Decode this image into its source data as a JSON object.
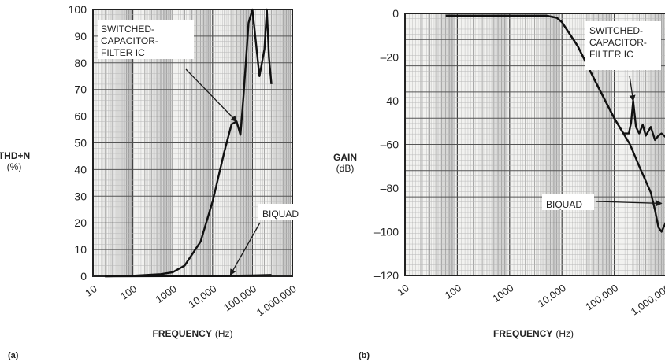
{
  "chart_data": [
    {
      "type": "line",
      "panel_label": "(a)",
      "ylabel": "THD+N",
      "ylabel_unit": "(%)",
      "xlabel": "FREQUENCY",
      "xlabel_unit": "(Hz)",
      "x_scale": "log",
      "xlim": [
        10,
        1000000
      ],
      "ylim": [
        0,
        100
      ],
      "grid": true,
      "x_ticks": [
        10,
        100,
        1000,
        10000,
        100000,
        1000000
      ],
      "x_tick_labels": [
        "10",
        "100",
        "1000",
        "10,000",
        "100,000",
        "1,000,000"
      ],
      "y_ticks": [
        0,
        10,
        20,
        30,
        40,
        50,
        60,
        70,
        80,
        90,
        100
      ],
      "y_tick_labels": [
        "0",
        "10",
        "20",
        "30",
        "40",
        "50",
        "60",
        "70",
        "80",
        "90",
        "100"
      ],
      "series": [
        {
          "name": "SWITCHED-CAPACITOR-FILTER IC",
          "label_lines": [
            "SWITCHED-",
            "CAPACITOR-",
            "FILTER IC"
          ],
          "x": [
            20,
            100,
            500,
            1000,
            2000,
            5000,
            10000,
            20000,
            30000,
            40000,
            50000,
            60000,
            80000,
            100000,
            150000,
            200000,
            230000,
            260000,
            300000
          ],
          "y": [
            0,
            0.2,
            0.8,
            1.5,
            4,
            13,
            28,
            47,
            57,
            58,
            53,
            68,
            95,
            100,
            75,
            85,
            100,
            82,
            72
          ]
        },
        {
          "name": "BIQUAD",
          "label_lines": [
            "BIQUAD"
          ],
          "x": [
            20,
            1000,
            10000,
            100000,
            300000
          ],
          "y": [
            0,
            0.05,
            0.1,
            0.3,
            0.5
          ]
        }
      ]
    },
    {
      "type": "line",
      "panel_label": "(b)",
      "ylabel": "GAIN",
      "ylabel_unit": "(dB)",
      "xlabel": "FREQUENCY",
      "xlabel_unit": "(Hz)",
      "x_scale": "log",
      "xlim": [
        10,
        1000000
      ],
      "ylim": [
        -120,
        0
      ],
      "grid": true,
      "x_ticks": [
        10,
        100,
        1000,
        10000,
        100000,
        1000000
      ],
      "x_tick_labels": [
        "10",
        "100",
        "1000",
        "10,000",
        "100,000",
        "1,000,000"
      ],
      "y_ticks": [
        0,
        -20,
        -40,
        -60,
        -80,
        -100,
        -120
      ],
      "y_tick_labels": [
        "0",
        "–20",
        "–40",
        "–60",
        "–80",
        "–100",
        "–120"
      ],
      "series": [
        {
          "name": "SWITCHED-CAPACITOR-FILTER IC",
          "label_lines": [
            "SWITCHED-",
            "CAPACITOR-",
            "FILTER IC"
          ],
          "x": [
            60,
            1000,
            5000,
            8000,
            10000,
            20000,
            50000,
            100000,
            150000,
            190000,
            210000,
            230000,
            260000,
            300000,
            350000,
            400000,
            500000,
            600000,
            700000,
            800000,
            1000000
          ],
          "y": [
            -1,
            -1,
            -1,
            -2,
            -4,
            -15,
            -34,
            -48,
            -55,
            -55,
            -50,
            -40,
            -52,
            -55,
            -51,
            -56,
            -52,
            -58,
            -56,
            -55,
            -57
          ]
        },
        {
          "name": "BIQUAD",
          "label_lines": [
            "BIQUAD"
          ],
          "x": [
            60,
            1000,
            5000,
            8000,
            10000,
            20000,
            50000,
            100000,
            200000,
            300000,
            500000,
            600000,
            700000,
            800000,
            1000000
          ],
          "y": [
            -1,
            -1,
            -1,
            -2,
            -4,
            -15,
            -34,
            -48,
            -60,
            -70,
            -82,
            -90,
            -98,
            -100,
            -95
          ]
        }
      ]
    }
  ]
}
